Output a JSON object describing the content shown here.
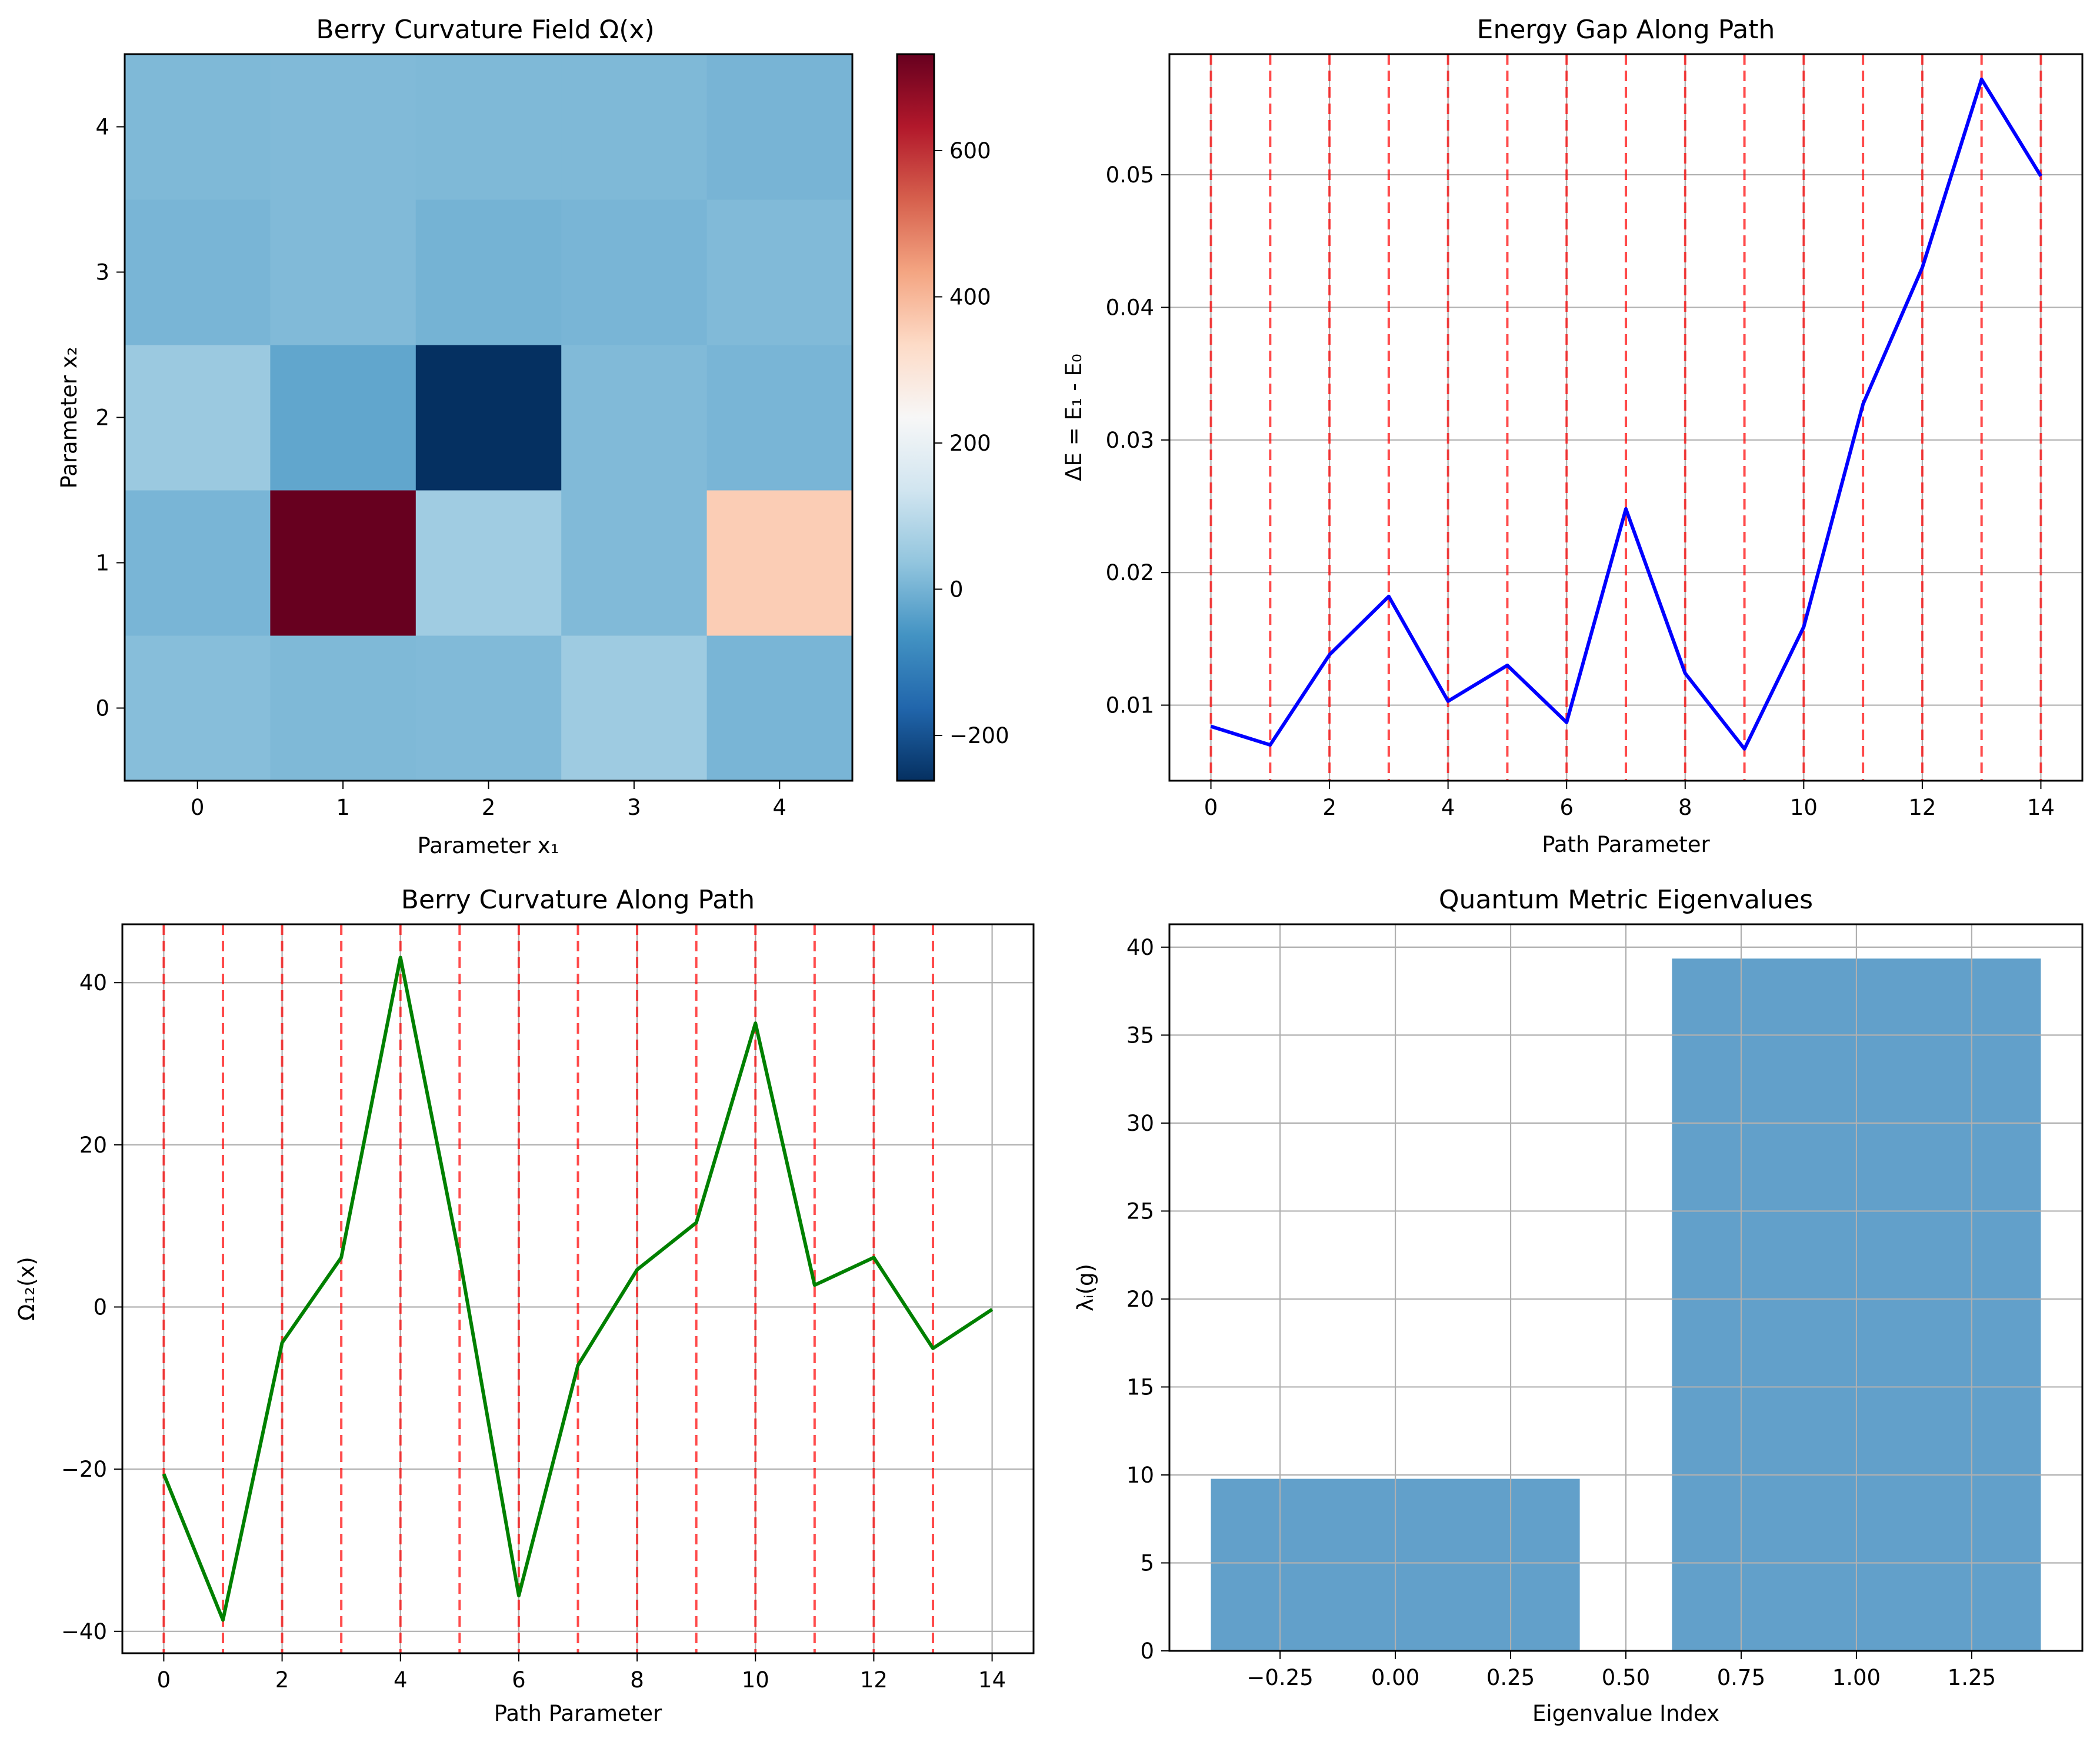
{
  "chart_data": [
    {
      "type": "heatmap",
      "title": "Berry Curvature Field Ω(x)",
      "xlabel": "Parameter x₁",
      "ylabel": "Parameter x₂",
      "x_ticks": [
        "0",
        "1",
        "2",
        "3",
        "4"
      ],
      "y_ticks": [
        "0",
        "1",
        "2",
        "3",
        "4"
      ],
      "colormap": "RdBu_r",
      "colorbar": {
        "range": [
          -262,
          732
        ],
        "ticks": [
          -200,
          0,
          200,
          400,
          600
        ],
        "tick_labels": [
          "−200",
          "0",
          "200",
          "400",
          "600"
        ]
      },
      "rows_from_bottom": [
        [
          22,
          12,
          15,
          55,
          5
        ],
        [
          5,
          732,
          58,
          15,
          360
        ],
        [
          50,
          -25,
          -262,
          15,
          5
        ],
        [
          5,
          15,
          0,
          5,
          15
        ],
        [
          12,
          15,
          12,
          12,
          3
        ]
      ]
    },
    {
      "type": "line",
      "title": "Energy Gap Along Path",
      "xlabel": "Path Parameter",
      "ylabel": "ΔE = E₁ - E₀",
      "x": [
        0,
        1,
        2,
        3,
        4,
        5,
        6,
        7,
        8,
        9,
        10,
        11,
        12,
        13,
        14
      ],
      "series": [
        {
          "name": "energy-gap",
          "color": "#0000ff",
          "values": [
            0.0084,
            0.007,
            0.0138,
            0.0182,
            0.0103,
            0.013,
            0.0087,
            0.0248,
            0.0124,
            0.0067,
            0.0159,
            0.0327,
            0.043,
            0.0572,
            0.0499
          ]
        }
      ],
      "vlines": {
        "x": [
          0,
          1,
          2,
          3,
          4,
          5,
          6,
          7,
          8,
          9,
          10,
          11,
          12,
          13,
          14
        ],
        "color": "#ff0000",
        "style": "dashed"
      },
      "xlim": [
        -0.7,
        14.7
      ],
      "ylim": [
        0.0043,
        0.0591
      ],
      "x_ticks": [
        0,
        2,
        4,
        6,
        8,
        10,
        12,
        14
      ],
      "y_ticks": [
        0.01,
        0.02,
        0.03,
        0.04,
        0.05
      ],
      "y_tick_labels": [
        "0.01",
        "0.02",
        "0.03",
        "0.04",
        "0.05"
      ],
      "grid": true
    },
    {
      "type": "line",
      "title": "Berry Curvature Along Path",
      "xlabel": "Path Parameter",
      "ylabel": "Ω₁₂(x)",
      "x": [
        0,
        1,
        2,
        3,
        4,
        5,
        6,
        7,
        8,
        9,
        10,
        11,
        12,
        13,
        14
      ],
      "series": [
        {
          "name": "berry-curvature",
          "color": "#008000",
          "values": [
            -20.6,
            -38.6,
            -4.4,
            6.1,
            43.1,
            6.1,
            -35.6,
            -7.2,
            4.6,
            10.4,
            35.0,
            2.7,
            6.1,
            -5.1,
            -0.3
          ]
        }
      ],
      "vlines": {
        "x": [
          0,
          1,
          2,
          3,
          4,
          5,
          6,
          7,
          8,
          9,
          10,
          11,
          12,
          13
        ],
        "color": "#ff0000",
        "style": "dashed"
      },
      "xlim": [
        -0.7,
        14.7
      ],
      "ylim": [
        -42.7,
        47.2
      ],
      "x_ticks": [
        0,
        2,
        4,
        6,
        8,
        10,
        12,
        14
      ],
      "y_ticks": [
        -40,
        -20,
        0,
        20,
        40
      ],
      "y_tick_labels": [
        "−40",
        "−20",
        "0",
        "20",
        "40"
      ],
      "grid": true
    },
    {
      "type": "bar",
      "title": "Quantum Metric Eigenvalues",
      "xlabel": "Eigenvalue Index",
      "ylabel": "λᵢ(g)",
      "categories": [
        0,
        1
      ],
      "values": [
        9.78,
        39.35
      ],
      "bar_width": 0.8,
      "color": "#1f77b4",
      "alpha": 0.7,
      "xlim": [
        -0.49,
        1.49
      ],
      "ylim": [
        0,
        41.3
      ],
      "x_ticks": [
        -0.25,
        0,
        0.25,
        0.5,
        0.75,
        1.0,
        1.25
      ],
      "x_tick_labels": [
        "−0.25",
        "0.00",
        "0.25",
        "0.50",
        "0.75",
        "1.00",
        "1.25"
      ],
      "y_ticks": [
        0,
        5,
        10,
        15,
        20,
        25,
        30,
        35,
        40
      ],
      "grid": true
    }
  ]
}
